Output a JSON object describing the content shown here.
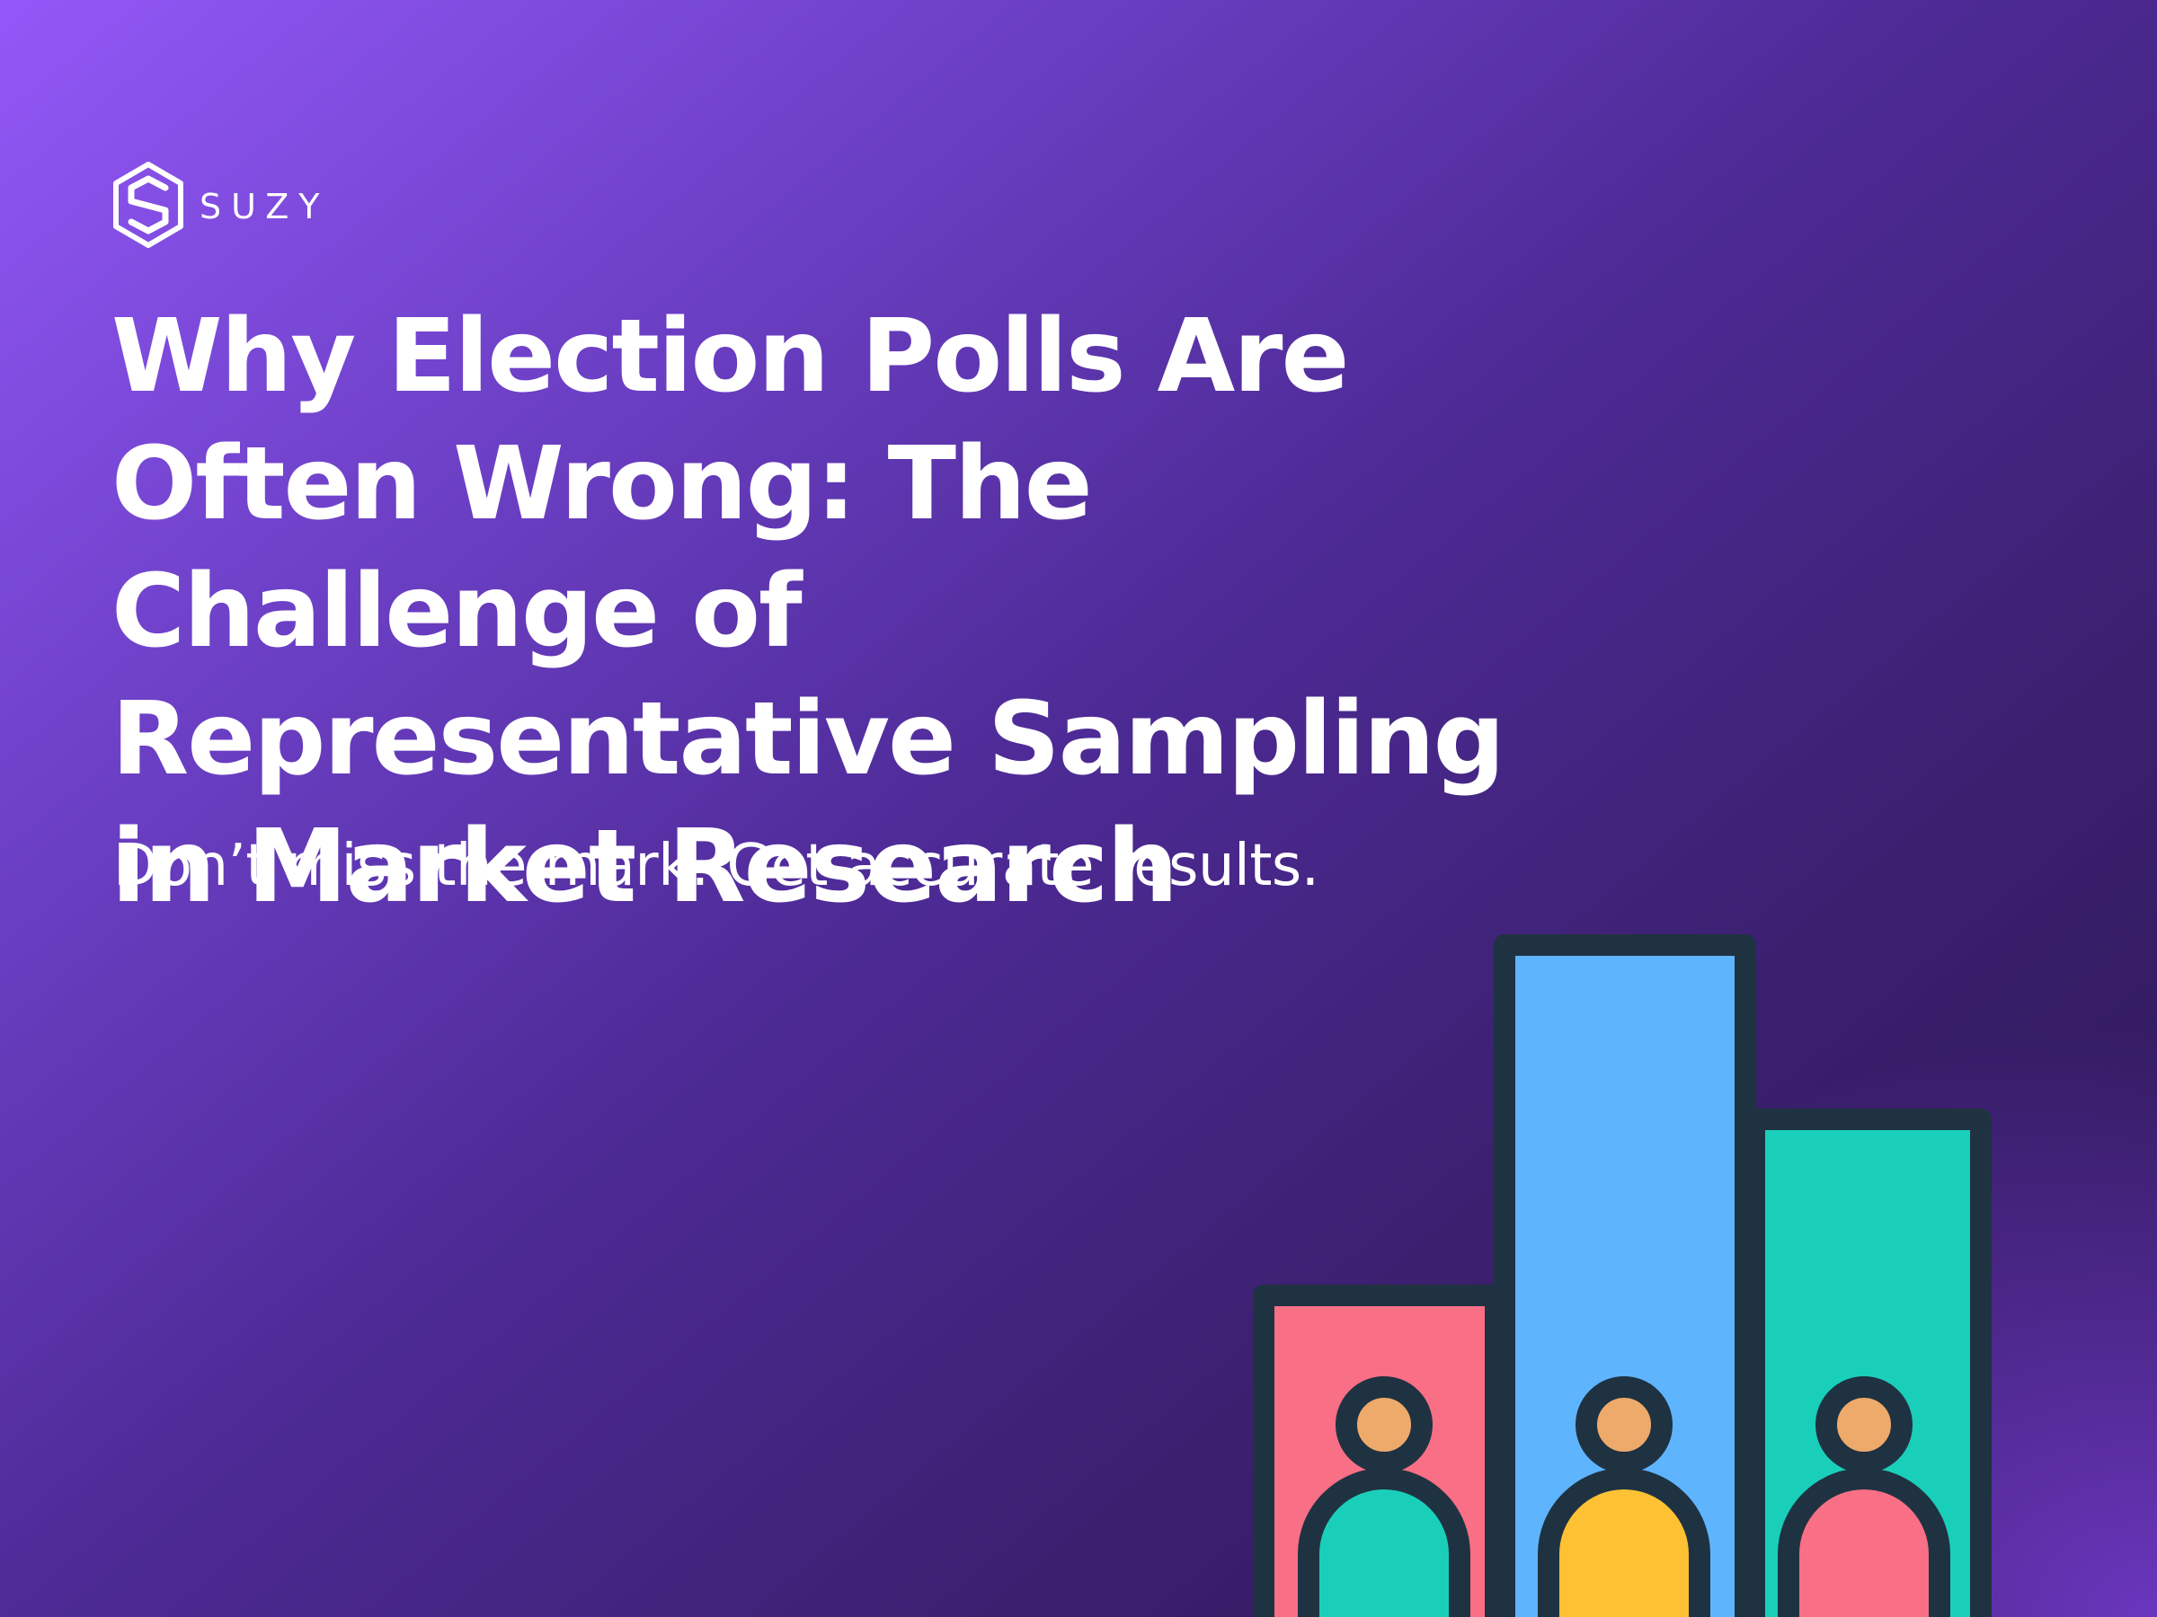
{
  "brand": {
    "logo_icon": "suzy-hexagon-s-logo-icon",
    "name": "SUZY"
  },
  "headline": {
    "title": "Why Election Polls Are Often Wrong: The Challenge of Representative Sampling in Market Research",
    "subtitle": "Don’t miss the mark. Get accurate results."
  },
  "illustration": {
    "icon": "bar-chart-people-icon",
    "colors": {
      "outline": "#1f3241",
      "bar_left": "#f86f86",
      "bar_middle": "#5fb4fe",
      "bar_right": "#1acfba",
      "head": "#eeaa6b",
      "body_left": "#1acfba",
      "body_middle": "#fec133",
      "body_right": "#f86f86"
    }
  }
}
